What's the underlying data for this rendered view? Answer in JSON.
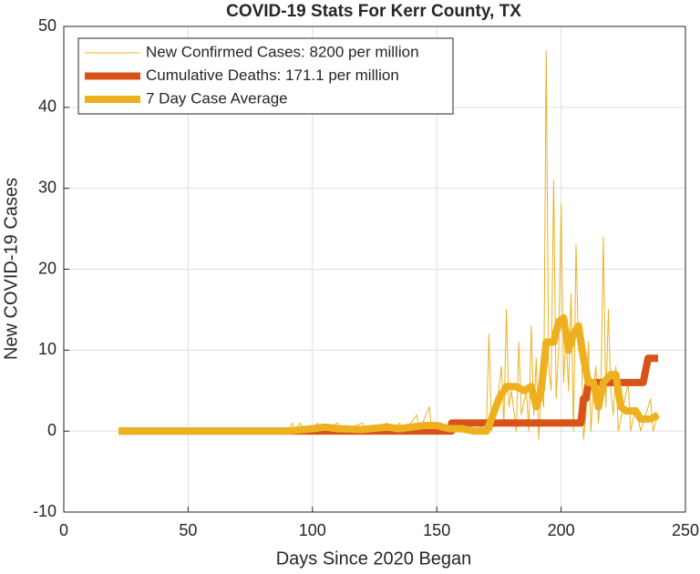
{
  "chart_data": {
    "type": "line",
    "title": "COVID-19 Stats For Kerr County, TX",
    "x_label": "Days Since 2020 Began",
    "y_label": "New COVID-19 Cases",
    "xlim": [
      0,
      250
    ],
    "xticks": [
      0,
      50,
      100,
      150,
      200,
      250
    ],
    "ylim": [
      -10,
      50
    ],
    "yticks": [
      -10,
      0,
      10,
      20,
      30,
      40,
      50
    ],
    "grid": true,
    "legend_position": "upper-left",
    "series": [
      {
        "name": "New Confirmed Cases: 8200 per million",
        "color": "#EDB120",
        "line_width": 1,
        "x": [
          22,
          90,
          92,
          93,
          95,
          97,
          100,
          102,
          104,
          110,
          112,
          120,
          122,
          130,
          132,
          135,
          137,
          142,
          143,
          147,
          148,
          152,
          154,
          160,
          165,
          170,
          171,
          172,
          174,
          176,
          177,
          178,
          179,
          180,
          182,
          183,
          184,
          186,
          187,
          188,
          189,
          190,
          191,
          192,
          193,
          194,
          195,
          196,
          197,
          198,
          199,
          200,
          201,
          202,
          203,
          204,
          205,
          206,
          207,
          208,
          209,
          210,
          211,
          212,
          213,
          214,
          215,
          216,
          217,
          218,
          219,
          220,
          221,
          222,
          223,
          225,
          227,
          228,
          230,
          232,
          234,
          236,
          237,
          239
        ],
        "values": [
          0,
          0,
          1,
          0,
          1,
          0,
          0,
          1,
          0,
          1,
          0,
          1,
          0,
          1,
          0,
          1,
          0,
          2,
          0,
          3,
          0,
          1,
          0,
          0,
          0,
          1,
          12,
          0,
          3,
          8,
          1,
          15,
          3,
          5,
          0,
          11,
          2,
          5,
          0,
          13,
          2,
          9,
          -1,
          5,
          3,
          47,
          8,
          5,
          31,
          4,
          10,
          28,
          6,
          12,
          5,
          17,
          0,
          23,
          10,
          13,
          -1,
          2,
          11,
          0,
          5,
          8,
          1,
          5,
          24,
          3,
          15,
          5,
          2,
          8,
          0,
          3,
          6,
          0,
          3,
          0,
          2,
          4,
          0,
          2
        ]
      },
      {
        "name": "Cumulative Deaths: 171.1 per million",
        "color": "#D95319",
        "line_width": 8,
        "x": [
          22,
          156,
          156,
          208,
          209,
          210,
          211,
          233,
          235,
          239
        ],
        "values": [
          0,
          0,
          1,
          1,
          4,
          4,
          6,
          6,
          9,
          9
        ]
      },
      {
        "name": "7 Day Case Average",
        "color": "#EDB120",
        "line_width": 8,
        "x": [
          22,
          90,
          100,
          105,
          110,
          120,
          130,
          135,
          140,
          145,
          150,
          155,
          160,
          165,
          170,
          172,
          175,
          178,
          182,
          185,
          188,
          190,
          192,
          194,
          197,
          199,
          201,
          203,
          205,
          207,
          209,
          211,
          213,
          215,
          217,
          220,
          222,
          224,
          226,
          230,
          232,
          236,
          239
        ],
        "values": [
          0,
          0,
          0.3,
          0.5,
          0.3,
          0.2,
          0.5,
          0.3,
          0.5,
          0.7,
          0.7,
          0.3,
          0.3,
          0,
          0,
          1.5,
          4,
          5.5,
          5.5,
          5,
          5.5,
          3,
          5,
          11,
          11,
          13.5,
          14,
          10,
          12,
          13,
          9,
          6,
          6,
          3,
          6,
          7,
          7,
          3,
          2.5,
          2.5,
          1.5,
          1.5,
          2
        ]
      }
    ]
  }
}
